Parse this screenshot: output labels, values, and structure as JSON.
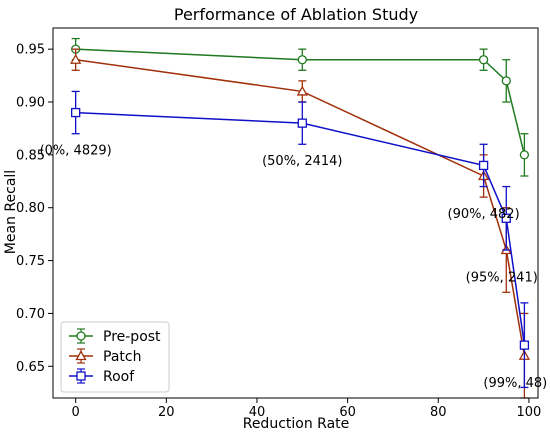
{
  "chart_data": {
    "type": "line",
    "title": "Performance of Ablation Study",
    "xlabel": "Reduction Rate",
    "ylabel": "Mean Recall",
    "xlim": [
      -5,
      102
    ],
    "ylim": [
      0.62,
      0.97
    ],
    "xticks": [
      0,
      20,
      40,
      60,
      80,
      100
    ],
    "xtick_labels": [
      "0",
      "20",
      "40",
      "60",
      "80",
      "100"
    ],
    "yticks": [
      0.65,
      0.7,
      0.75,
      0.8,
      0.85,
      0.9,
      0.95
    ],
    "ytick_labels": [
      "0.65",
      "0.70",
      "0.75",
      "0.80",
      "0.85",
      "0.90",
      "0.95"
    ],
    "grid": false,
    "legend_position": "lower-left",
    "x": [
      0,
      50,
      90,
      95,
      99
    ],
    "series": [
      {
        "name": "Pre-post",
        "color": "#1f7a1f",
        "marker": "circle",
        "values": [
          0.95,
          0.94,
          0.94,
          0.92,
          0.85
        ],
        "errors": [
          0.01,
          0.01,
          0.01,
          0.02,
          0.02
        ]
      },
      {
        "name": "Patch",
        "color": "#a0300a",
        "marker": "triangle",
        "values": [
          0.94,
          0.91,
          0.83,
          0.76,
          0.66
        ],
        "errors": [
          0.01,
          0.01,
          0.02,
          0.04,
          0.04
        ]
      },
      {
        "name": "Roof",
        "color": "#1010c8",
        "marker": "square",
        "values": [
          0.89,
          0.88,
          0.84,
          0.79,
          0.67
        ],
        "errors": [
          0.02,
          0.02,
          0.02,
          0.03,
          0.04
        ]
      }
    ],
    "annotations": [
      {
        "text": "(0%, 4829)",
        "x": 0,
        "y": 0.855
      },
      {
        "text": "(50%, 2414)",
        "x": 50,
        "y": 0.845
      },
      {
        "text": "(90%, 482)",
        "x": 90,
        "y": 0.795
      },
      {
        "text": "(95%, 241)",
        "x": 94,
        "y": 0.735
      },
      {
        "text": "(99%, 48)",
        "x": 97,
        "y": 0.635
      }
    ]
  }
}
